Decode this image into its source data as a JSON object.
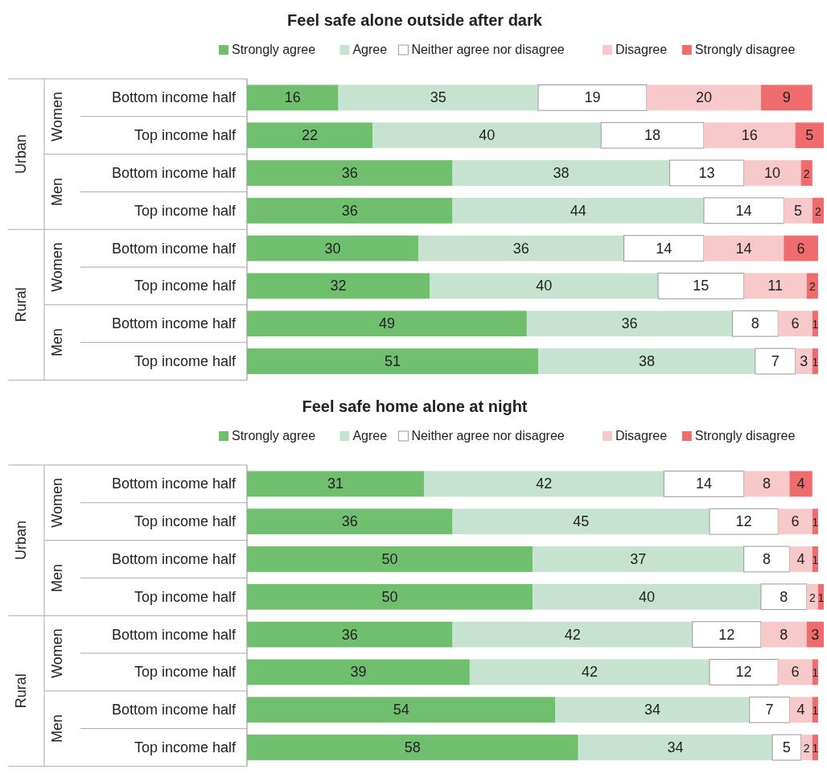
{
  "chart_data": [
    {
      "type": "bar",
      "orientation": "horizontal",
      "stacked": true,
      "data_labels": true,
      "legend": "top",
      "title": "Feel safe alone outside after dark",
      "categories": [
        "Bottom income half",
        "Top income half",
        "Bottom income half",
        "Top income half",
        "Bottom income half",
        "Top income half",
        "Bottom income half",
        "Top income half"
      ],
      "annotations": [
        "Urban",
        "Women",
        "Men",
        "Rural",
        "Women",
        "Men"
      ],
      "series": [
        {
          "name": "Strongly agree",
          "color": "#70bf6e",
          "values": [
            16,
            22,
            36,
            36,
            30,
            32,
            49,
            51
          ]
        },
        {
          "name": "Agree",
          "color": "#c6e3d1",
          "values": [
            35,
            40,
            38,
            44,
            36,
            40,
            36,
            38
          ]
        },
        {
          "name": "Neither agree nor disagree",
          "color": "#ffffff",
          "values": [
            19,
            18,
            13,
            14,
            14,
            15,
            8,
            7
          ]
        },
        {
          "name": "Disagree",
          "color": "#f8c9cb",
          "values": [
            20,
            16,
            10,
            5,
            14,
            11,
            6,
            3
          ]
        },
        {
          "name": "Strongly disagree",
          "color": "#ee6b6e",
          "values": [
            9,
            5,
            2,
            2,
            6,
            2,
            1,
            1
          ]
        }
      ]
    },
    {
      "type": "bar",
      "orientation": "horizontal",
      "stacked": true,
      "data_labels": true,
      "legend": "top",
      "title": "Feel safe home alone at night",
      "categories": [
        "Bottom income half",
        "Top income half",
        "Bottom income half",
        "Top income half",
        "Bottom income half",
        "Top income half",
        "Bottom income half",
        "Top income half"
      ],
      "annotations": [
        "Urban",
        "Women",
        "Men",
        "Rural",
        "Women",
        "Men"
      ],
      "series": [
        {
          "name": "Strongly agree",
          "color": "#70bf6e",
          "values": [
            31,
            36,
            50,
            50,
            36,
            39,
            54,
            58
          ]
        },
        {
          "name": "Agree",
          "color": "#c6e3d1",
          "values": [
            42,
            45,
            37,
            40,
            42,
            42,
            34,
            34
          ]
        },
        {
          "name": "Neither agree nor disagree",
          "color": "#ffffff",
          "values": [
            14,
            12,
            8,
            8,
            12,
            12,
            7,
            5
          ]
        },
        {
          "name": "Disagree",
          "color": "#f8c9cb",
          "values": [
            8,
            6,
            4,
            2,
            8,
            6,
            4,
            2
          ]
        },
        {
          "name": "Strongly disagree",
          "color": "#ee6b6e",
          "values": [
            4,
            1,
            1,
            1,
            3,
            1,
            1,
            1
          ]
        }
      ]
    }
  ]
}
